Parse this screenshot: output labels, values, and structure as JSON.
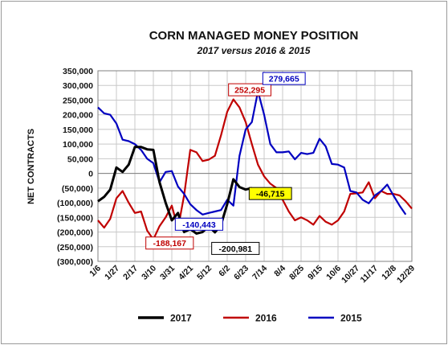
{
  "chart_data": {
    "type": "line",
    "title": "CORN MANAGED MONEY POSITION",
    "subtitle": "2017 versus 2016 & 2015",
    "ylabel": "NET CONTRACTS",
    "xlabel": "",
    "ylim": [
      -300000,
      350000
    ],
    "ytick_values": [
      350000,
      300000,
      250000,
      200000,
      150000,
      100000,
      50000,
      0,
      -50000,
      -100000,
      -150000,
      -200000,
      -250000,
      -300000
    ],
    "ytick_labels": [
      "350,000",
      "300,000",
      "250,000",
      "200,000",
      "150,000",
      "100,000",
      "50,000",
      "0",
      "(50,000)",
      "(100,000)",
      "(150,000)",
      "(200,000)",
      "(250,000)",
      "(300,000)"
    ],
    "x_count": 52,
    "xtick_labels": [
      "1/6",
      "1/27",
      "2/17",
      "3/10",
      "3/31",
      "4/21",
      "5/12",
      "6/2",
      "6/23",
      "7/14",
      "8/4",
      "8/25",
      "9/15",
      "10/6",
      "10/27",
      "11/17",
      "12/8",
      "12/29"
    ],
    "grid": true,
    "legend_position": "bottom",
    "series": [
      {
        "name": "2017",
        "color": "#000000",
        "values": [
          -95000,
          -80000,
          -55000,
          20000,
          5000,
          30000,
          90000,
          90000,
          82000,
          80000,
          -30000,
          -100000,
          -160000,
          -135000,
          -200000,
          -190000,
          -205000,
          -200000,
          -180000,
          -200981,
          -175000,
          -105000,
          -20000,
          -46715,
          -55000,
          -50000
        ]
      },
      {
        "name": "2016",
        "color": "#c00000",
        "values": [
          -160000,
          -185000,
          -155000,
          -85000,
          -60000,
          -100000,
          -135000,
          -130000,
          -195000,
          -225000,
          -180000,
          -150000,
          -110000,
          -188167,
          -75000,
          80000,
          72000,
          42000,
          47000,
          60000,
          130000,
          210000,
          252295,
          225000,
          175000,
          100000,
          30000,
          -10000,
          -35000,
          -50000,
          -90000,
          -130000,
          -160000,
          -150000,
          -160000,
          -175000,
          -145000,
          -165000,
          -175000,
          -160000,
          -130000,
          -70000,
          -68000,
          -65000,
          -30000,
          -85000,
          -60000,
          -70000,
          -70000,
          -75000,
          -95000,
          -120000
        ]
      },
      {
        "name": "2015",
        "color": "#0000c0",
        "values": [
          225000,
          205000,
          200000,
          170000,
          115000,
          110000,
          100000,
          80000,
          50000,
          35000,
          -30000,
          5000,
          8000,
          -45000,
          -70000,
          -105000,
          -125000,
          -140443,
          -135000,
          -130000,
          -125000,
          -90000,
          -110000,
          60000,
          150000,
          175000,
          279665,
          200000,
          100000,
          72000,
          72000,
          75000,
          48000,
          70000,
          66000,
          70000,
          118000,
          92000,
          32000,
          30000,
          20000,
          -60000,
          -65000,
          -90000,
          -102000,
          -75000,
          -60000,
          -38000,
          -75000,
          -110000,
          -140000
        ]
      }
    ],
    "callouts": [
      {
        "text": "252,295",
        "color": "#c00000",
        "fill": "#ffffff",
        "series": "2016",
        "index": 22
      },
      {
        "text": "279,665",
        "color": "#0000c0",
        "fill": "#ffffff",
        "series": "2015",
        "index": 26
      },
      {
        "text": "-140,443",
        "color": "#0000c0",
        "fill": "#ffffff",
        "series": "2015",
        "index": 17
      },
      {
        "text": "-188,167",
        "color": "#c00000",
        "fill": "#ffffff",
        "series": "2016",
        "index": 13
      },
      {
        "text": "-200,981",
        "color": "#000000",
        "fill": "#ffffff",
        "series": "2017",
        "index": 19
      },
      {
        "text": "-46,715",
        "color": "#000000",
        "fill": "#ffff00",
        "series": "2017",
        "index": 23
      }
    ]
  }
}
